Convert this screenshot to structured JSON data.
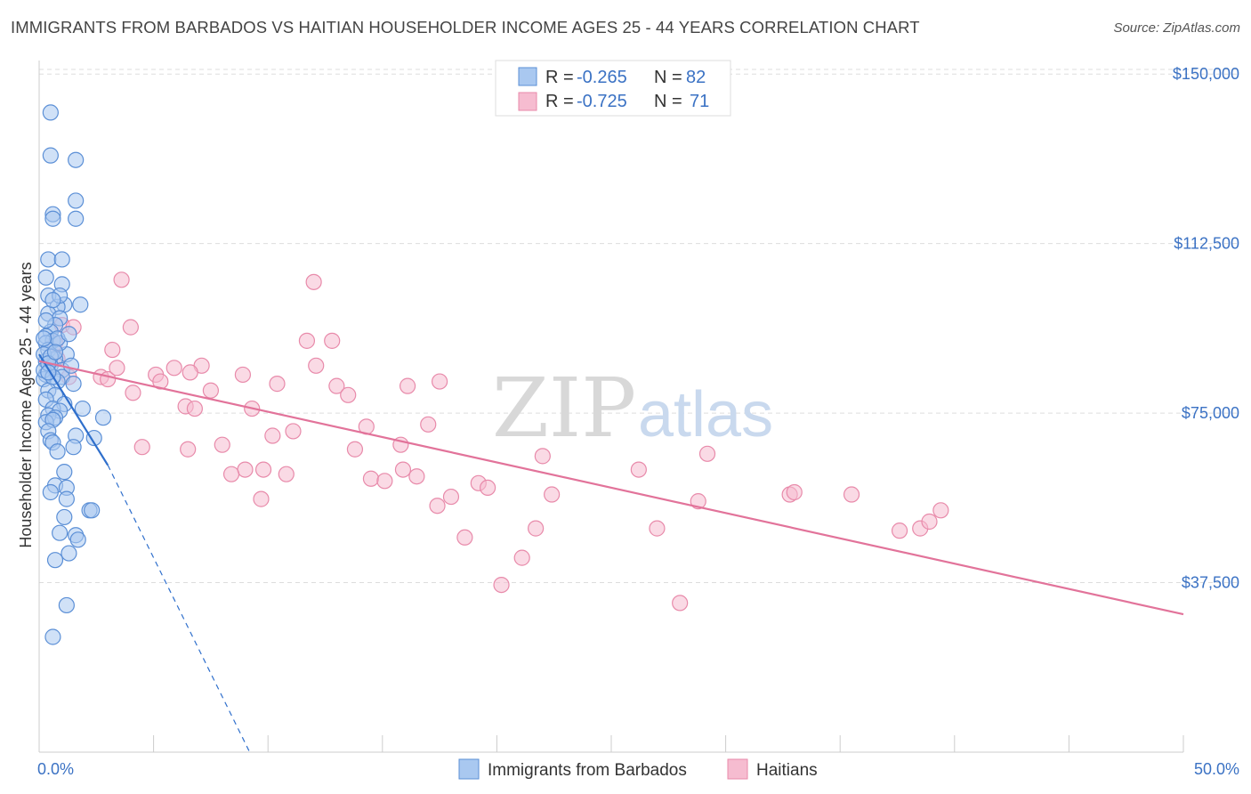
{
  "title": "IMMIGRANTS FROM BARBADOS VS HAITIAN HOUSEHOLDER INCOME AGES 25 - 44 YEARS CORRELATION CHART",
  "source": "Source: ZipAtlas.com",
  "watermark": {
    "zip": "ZIP",
    "atlas": "atlas"
  },
  "colors": {
    "blue_fill": "#a9c8f0",
    "blue_stroke": "#5b8fd6",
    "blue_line": "#2f6fcc",
    "pink_fill": "#f6bcd0",
    "pink_stroke": "#e88aaa",
    "pink_line": "#e2739a",
    "grid": "#dddddd",
    "tick_text": "#3b72c4"
  },
  "legend": {
    "rows": [
      {
        "r_label": "R = ",
        "r_value": "-0.265",
        "n_label": "N = ",
        "n_value": "82",
        "color": "blue"
      },
      {
        "r_label": "R = ",
        "r_value": "-0.725",
        "n_label": "N = ",
        "n_value": "71",
        "color": "pink"
      }
    ]
  },
  "bottom_legend": [
    {
      "label": "Immigrants from Barbados",
      "color": "blue"
    },
    {
      "label": "Haitians",
      "color": "pink"
    }
  ],
  "chart_data": {
    "type": "scatter",
    "title": "IMMIGRANTS FROM BARBADOS VS HAITIAN HOUSEHOLDER INCOME AGES 25 - 44 YEARS CORRELATION CHART",
    "xlabel": "",
    "ylabel": "Householder Income Ages 25 - 44 years",
    "xlim": [
      0,
      50
    ],
    "ylim": [
      0,
      153000
    ],
    "x_tick_labels": [
      {
        "value": 0,
        "label": "0.0%"
      },
      {
        "value": 50,
        "label": "50.0%"
      }
    ],
    "x_minor_ticks": [
      0,
      5,
      10,
      15,
      20,
      25,
      30,
      35,
      40,
      45,
      50
    ],
    "y_ticks": [
      {
        "value": 37500,
        "label": "$37,500"
      },
      {
        "value": 75000,
        "label": "$75,000"
      },
      {
        "value": 112500,
        "label": "$112,500"
      },
      {
        "value": 150000,
        "label": "$150,000"
      }
    ],
    "series": [
      {
        "name": "Immigrants from Barbados",
        "color": "blue",
        "trend": {
          "x0": 0,
          "y0": 88000,
          "x1": 3.0,
          "y1": 63500,
          "dash_x_end": 9.2,
          "dash_y_end": 0
        },
        "points": [
          [
            0.5,
            141500
          ],
          [
            0.5,
            132000
          ],
          [
            1.6,
            131000
          ],
          [
            1.6,
            122000
          ],
          [
            0.6,
            119000
          ],
          [
            1.6,
            118000
          ],
          [
            0.6,
            118000
          ],
          [
            0.4,
            109000
          ],
          [
            1.0,
            109000
          ],
          [
            0.3,
            105000
          ],
          [
            1.0,
            103500
          ],
          [
            0.4,
            101000
          ],
          [
            1.8,
            99000
          ],
          [
            1.1,
            99000
          ],
          [
            0.8,
            98500
          ],
          [
            0.4,
            97000
          ],
          [
            0.9,
            96000
          ],
          [
            0.7,
            94500
          ],
          [
            0.5,
            93000
          ],
          [
            0.3,
            92000
          ],
          [
            0.6,
            91000
          ],
          [
            0.3,
            90500
          ],
          [
            0.4,
            89000
          ],
          [
            1.2,
            88000
          ],
          [
            0.7,
            87000
          ],
          [
            0.3,
            86500
          ],
          [
            0.5,
            85500
          ],
          [
            1.0,
            84500
          ],
          [
            0.3,
            83500
          ],
          [
            1.0,
            83000
          ],
          [
            0.2,
            82500
          ],
          [
            0.8,
            82000
          ],
          [
            1.5,
            81500
          ],
          [
            0.4,
            80000
          ],
          [
            0.7,
            79000
          ],
          [
            0.3,
            78000
          ],
          [
            1.1,
            77000
          ],
          [
            0.6,
            76000
          ],
          [
            0.9,
            75500
          ],
          [
            1.9,
            76000
          ],
          [
            0.4,
            74500
          ],
          [
            0.7,
            74000
          ],
          [
            2.8,
            74000
          ],
          [
            0.3,
            73000
          ],
          [
            0.6,
            73500
          ],
          [
            0.4,
            71000
          ],
          [
            1.6,
            70000
          ],
          [
            0.5,
            69000
          ],
          [
            2.4,
            69500
          ],
          [
            0.6,
            68500
          ],
          [
            1.5,
            67500
          ],
          [
            0.8,
            66500
          ],
          [
            1.1,
            62000
          ],
          [
            0.7,
            59000
          ],
          [
            1.2,
            58500
          ],
          [
            0.5,
            57500
          ],
          [
            1.2,
            56000
          ],
          [
            2.2,
            53500
          ],
          [
            2.3,
            53500
          ],
          [
            1.1,
            52000
          ],
          [
            0.9,
            48500
          ],
          [
            1.6,
            48000
          ],
          [
            1.7,
            47000
          ],
          [
            1.3,
            44000
          ],
          [
            0.7,
            42500
          ],
          [
            1.2,
            32500
          ],
          [
            0.6,
            25500
          ],
          [
            0.9,
            90500
          ],
          [
            0.2,
            88000
          ],
          [
            0.5,
            87500
          ],
          [
            1.4,
            85500
          ],
          [
            0.2,
            84500
          ],
          [
            0.6,
            83000
          ],
          [
            0.4,
            86000
          ],
          [
            0.8,
            91500
          ],
          [
            0.3,
            95500
          ],
          [
            0.9,
            101000
          ],
          [
            0.6,
            100000
          ],
          [
            1.3,
            92500
          ],
          [
            0.2,
            91500
          ],
          [
            0.7,
            88500
          ],
          [
            0.4,
            84000
          ]
        ]
      },
      {
        "name": "Haitians",
        "color": "pink",
        "trend": {
          "x0": 0,
          "y0": 86500,
          "x1": 50,
          "y1": 30500
        },
        "points": [
          [
            3.6,
            104500
          ],
          [
            12.0,
            104000
          ],
          [
            4.0,
            94000
          ],
          [
            1.0,
            94500
          ],
          [
            1.5,
            94000
          ],
          [
            11.7,
            91000
          ],
          [
            12.8,
            91000
          ],
          [
            0.7,
            90500
          ],
          [
            3.2,
            89000
          ],
          [
            0.8,
            87000
          ],
          [
            5.9,
            85000
          ],
          [
            7.1,
            85500
          ],
          [
            12.1,
            85500
          ],
          [
            6.6,
            84000
          ],
          [
            5.1,
            83500
          ],
          [
            8.9,
            83500
          ],
          [
            1.3,
            83000
          ],
          [
            2.7,
            83000
          ],
          [
            3.0,
            82500
          ],
          [
            5.3,
            82000
          ],
          [
            10.4,
            81500
          ],
          [
            13.0,
            81000
          ],
          [
            16.1,
            81000
          ],
          [
            17.5,
            82000
          ],
          [
            4.1,
            79500
          ],
          [
            7.5,
            80000
          ],
          [
            13.5,
            79000
          ],
          [
            6.4,
            76500
          ],
          [
            6.8,
            76000
          ],
          [
            9.3,
            76000
          ],
          [
            14.3,
            72000
          ],
          [
            17.0,
            72500
          ],
          [
            10.2,
            70000
          ],
          [
            11.1,
            71000
          ],
          [
            15.8,
            68000
          ],
          [
            4.5,
            67500
          ],
          [
            6.5,
            67000
          ],
          [
            8.0,
            68000
          ],
          [
            13.8,
            67000
          ],
          [
            22.0,
            65500
          ],
          [
            29.2,
            66000
          ],
          [
            9.0,
            62500
          ],
          [
            9.8,
            62500
          ],
          [
            26.2,
            62500
          ],
          [
            15.9,
            62500
          ],
          [
            8.4,
            61500
          ],
          [
            10.8,
            61500
          ],
          [
            14.5,
            60500
          ],
          [
            15.1,
            60000
          ],
          [
            16.5,
            61000
          ],
          [
            19.2,
            59500
          ],
          [
            19.6,
            58500
          ],
          [
            18.0,
            56500
          ],
          [
            22.4,
            57000
          ],
          [
            32.8,
            57000
          ],
          [
            35.5,
            57000
          ],
          [
            9.7,
            56000
          ],
          [
            17.4,
            54500
          ],
          [
            28.8,
            55500
          ],
          [
            39.4,
            53500
          ],
          [
            21.7,
            49500
          ],
          [
            27.0,
            49500
          ],
          [
            37.6,
            49000
          ],
          [
            38.5,
            49500
          ],
          [
            38.9,
            51000
          ],
          [
            18.6,
            47500
          ],
          [
            21.1,
            43000
          ],
          [
            20.2,
            37000
          ],
          [
            28.0,
            33000
          ],
          [
            33.0,
            57500
          ],
          [
            3.4,
            85000
          ]
        ]
      }
    ]
  }
}
